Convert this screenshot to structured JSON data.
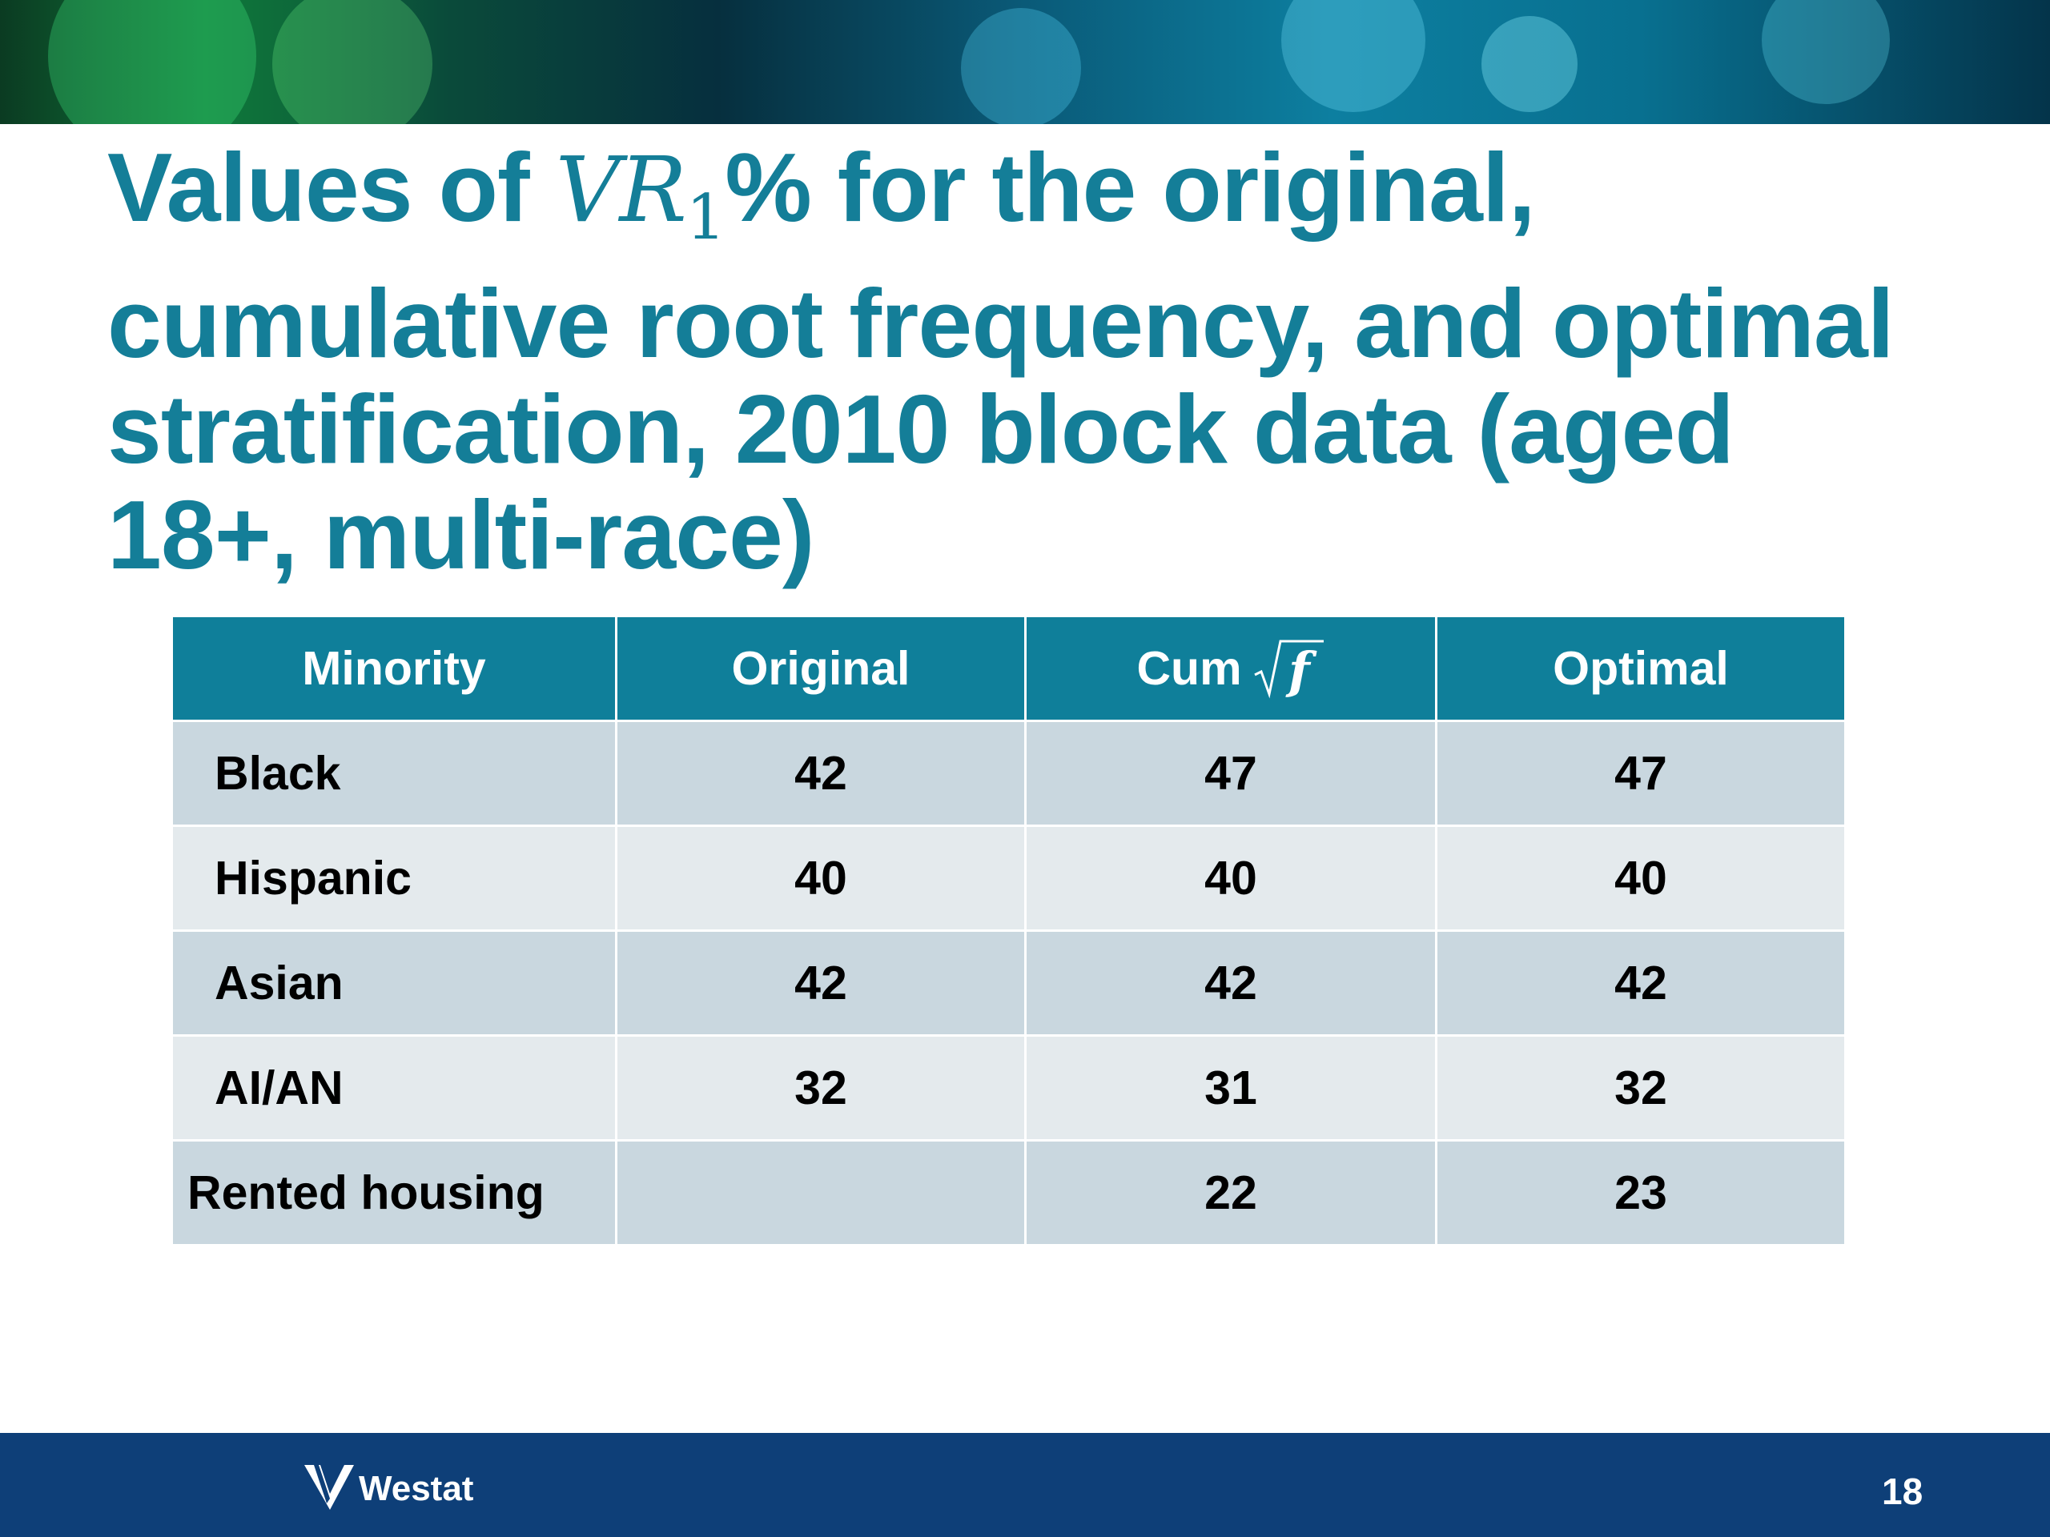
{
  "header": {
    "title": {
      "prefix": "Values of",
      "math": "VR",
      "subscript": "1",
      "lines": [
        "% for the original,",
        "cumulative root frequency, and optimal",
        "stratification, 2010 block data (aged",
        "18+, multi-race)"
      ]
    }
  },
  "table": {
    "columns": {
      "label": "Minority",
      "original": "Original",
      "cum": "Cum",
      "cum_math": "f",
      "optimal": "Optimal"
    },
    "rows": [
      {
        "label": "Black",
        "original": 42,
        "cum": 47,
        "optimal": 47
      },
      {
        "label": "Hispanic",
        "original": 40,
        "cum": 40,
        "optimal": 40
      },
      {
        "label": "Asian",
        "original": 42,
        "cum": 42,
        "optimal": 42
      },
      {
        "label": "AI/AN",
        "original": 32,
        "cum": 31,
        "optimal": 32
      },
      {
        "label": "Rented housing",
        "cum": 22,
        "optimal": 23
      }
    ]
  },
  "footer": {
    "logo": "Westat",
    "page": "18"
  }
}
